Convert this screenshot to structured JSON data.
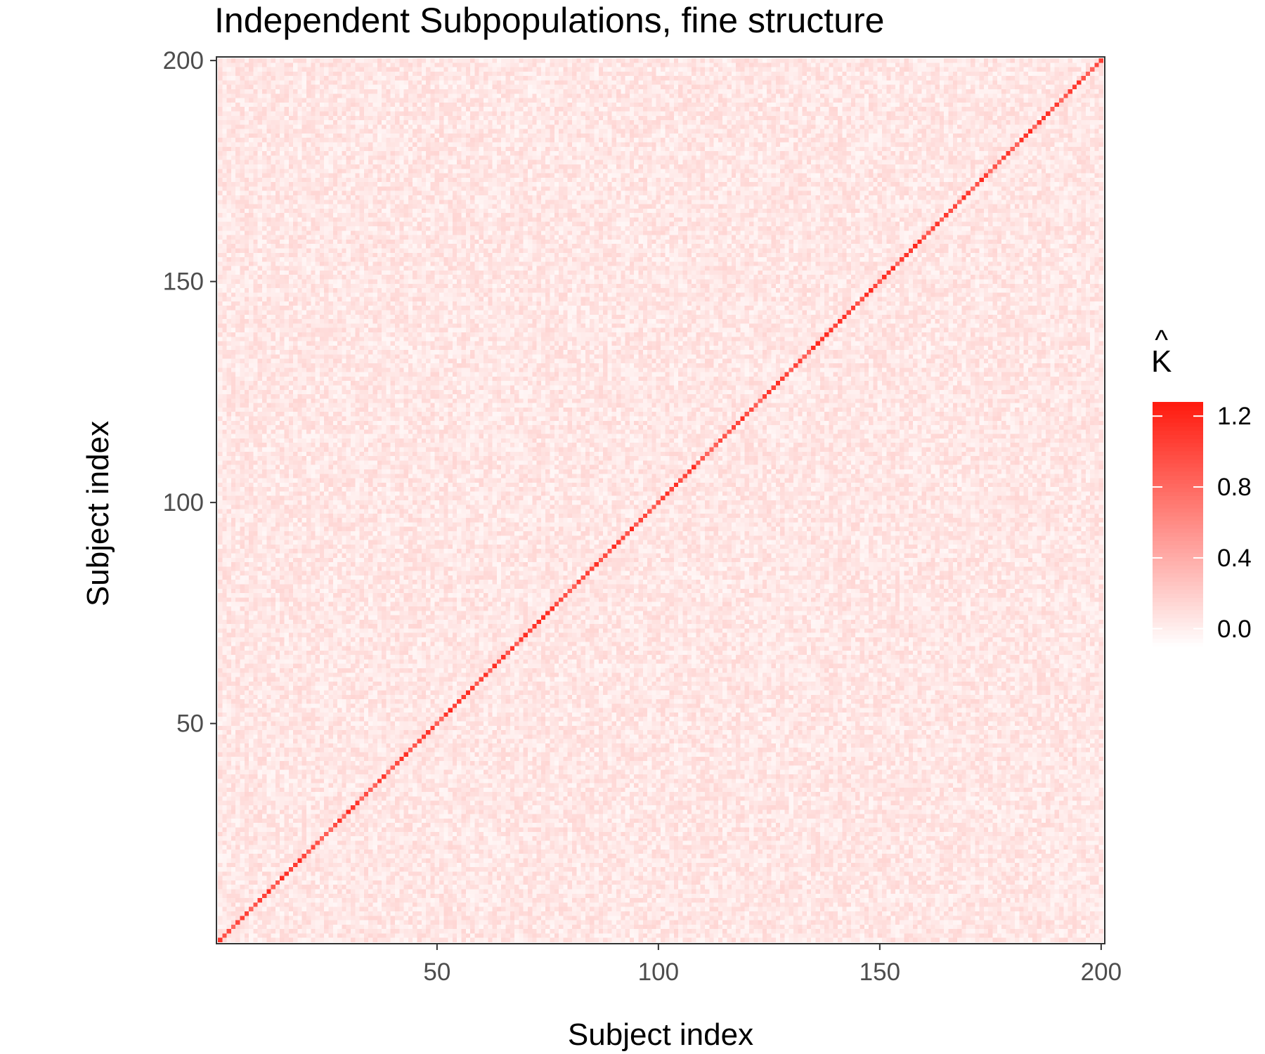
{
  "chart_data": {
    "type": "heatmap",
    "title": "Independent Subpopulations, fine structure",
    "xlabel": "Subject index",
    "ylabel": "Subject index",
    "xlim": [
      1,
      200
    ],
    "ylim": [
      1,
      200
    ],
    "x_ticks": [
      50,
      100,
      150,
      200
    ],
    "y_ticks": [
      50,
      100,
      150,
      200
    ],
    "n_subjects": 200,
    "diagonal_value_range": [
      0.8,
      1.2
    ],
    "off_diagonal_value_range": [
      -0.05,
      0.15
    ],
    "legend": {
      "title": "K",
      "title_accent": "hat",
      "placement": "right",
      "ticks": [
        "0.0",
        "0.4",
        "0.8",
        "1.2"
      ],
      "tick_values": [
        0.0,
        0.4,
        0.8,
        1.2
      ],
      "range": [
        -0.1,
        1.28
      ],
      "color_low": "#ffffff",
      "color_high": "#ff1a0e"
    },
    "grid": false
  }
}
